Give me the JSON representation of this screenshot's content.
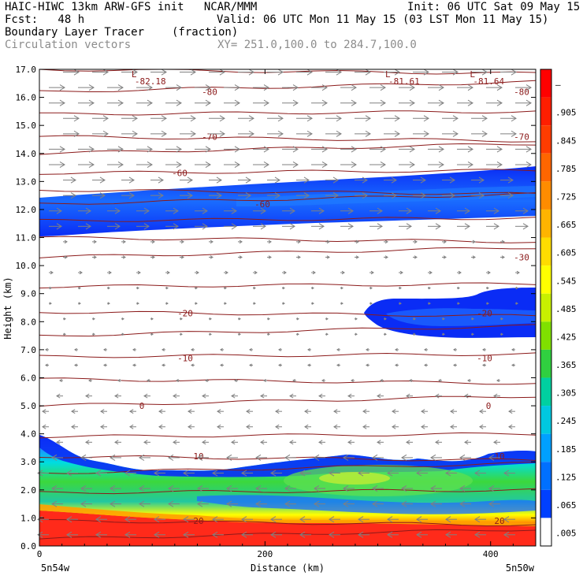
{
  "header": {
    "model_line": "HAIC-HIWC 13km ARW-GFS init   NCAR/MMM",
    "init_line": "Init: 06 UTC Sat 09 May 15",
    "fcst_line": "Fcst:   48 h",
    "valid_line": "Valid: 06 UTC Mon 11 May 15 (03 LST Mon 11 May 15)",
    "field_line": "Boundary Layer Tracer",
    "units": "(fraction)",
    "vector_line": "Circulation vectors",
    "xy_line": "XY= 251.0,100.0 to 284.7,100.0"
  },
  "colors": {
    "red": "#ff2a1a",
    "orange": "#ffa500",
    "yellow": "#ffff00",
    "green": "#22d322",
    "cyan": "#00e8e8",
    "blue": "#0a3cff",
    "contour": "#8b1a1a",
    "vector": "#808080"
  },
  "chart_data": {
    "type": "heatmap",
    "xlabel": "Distance (km)",
    "ylabel": "Height (km)",
    "xlim": [
      0,
      440
    ],
    "ylim": [
      0,
      17
    ],
    "x_ticks": [
      0,
      200,
      400
    ],
    "y_ticks": [
      "0.0",
      "1.0",
      "2.0",
      "3.0",
      "4.0",
      "5.0",
      "6.0",
      "7.0",
      "8.0",
      "9.0",
      "10.0",
      "11.0",
      "12.0",
      "13.0",
      "14.0",
      "15.0",
      "16.0",
      "17.0"
    ],
    "x_endpoints": {
      "left": "5n54w",
      "right": "5n50w"
    },
    "colorbar_labels": [
      "–",
      ".905",
      ".845",
      ".785",
      ".725",
      ".665",
      ".605",
      ".545",
      ".485",
      ".425",
      ".365",
      ".305",
      ".245",
      ".185",
      ".125",
      ".065",
      ".005"
    ],
    "colorbar_colors": [
      "#ff0000",
      "#ff1e00",
      "#ff3c00",
      "#ff6600",
      "#ff8c00",
      "#ffb400",
      "#ffdc00",
      "#ffff00",
      "#c8f000",
      "#80e000",
      "#30d040",
      "#00d0a0",
      "#00c8e0",
      "#00a0ff",
      "#0070ff",
      "#0040ff",
      "#ffffff"
    ],
    "temperature_contours": [
      {
        "label": "0",
        "y": 5.0,
        "at": [
          [
            60,
            180
          ],
          [
            400,
            620
          ]
        ]
      },
      {
        "label": "-10",
        "y": 6.7,
        "at": [
          [
            50,
            235
          ],
          [
            380,
            615
          ]
        ]
      },
      {
        "label": "-20",
        "y": 8.3,
        "at": [
          [
            40,
            235
          ],
          [
            350,
            615
          ]
        ]
      },
      {
        "label": "-30",
        "y": 10.3,
        "at": [
          [
            400,
            662
          ]
        ]
      },
      {
        "label": "-60",
        "y": 13.3,
        "at": [
          [
            40,
            228
          ]
        ]
      },
      {
        "label": "-60",
        "y": 12.2,
        "at": [
          [
            40,
            333
          ]
        ]
      },
      {
        "label": "-70",
        "y": 14.6,
        "at": [
          [
            50,
            266
          ],
          [
            400,
            662
          ]
        ]
      },
      {
        "label": "-80",
        "y": 16.2,
        "at": [
          [
            50,
            266
          ],
          [
            400,
            662
          ]
        ]
      },
      {
        "label": "10",
        "y": 3.2,
        "at": [
          [
            80,
            252
          ],
          [
            380,
            634
          ]
        ]
      },
      {
        "label": "20",
        "y": 0.9,
        "at": [
          [
            80,
            252
          ],
          [
            380,
            634
          ]
        ]
      }
    ],
    "lows": [
      {
        "label": "L",
        "value": "-82.18",
        "x": 90
      },
      {
        "label": "L",
        "value": "-81.61",
        "x": 315
      },
      {
        "label": "L",
        "value": "-81.64",
        "x": 390
      }
    ]
  }
}
